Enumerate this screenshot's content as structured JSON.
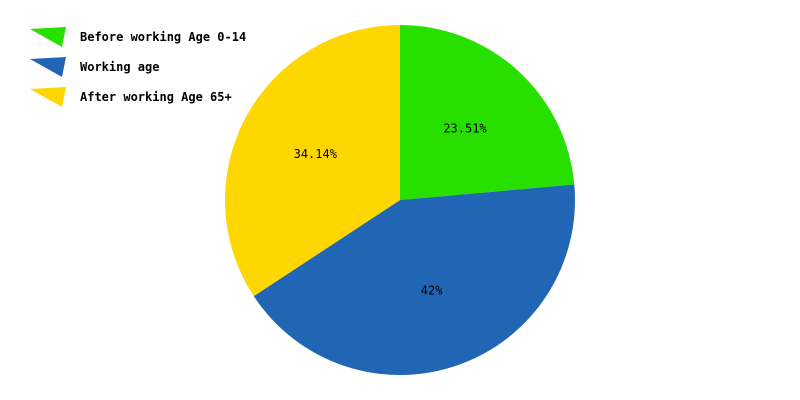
{
  "chart_data": {
    "type": "pie",
    "series": [
      {
        "name": "Before working Age 0-14",
        "value": 23.51,
        "label": "23.51%",
        "color": "#27e000"
      },
      {
        "name": "Working age",
        "value": 42,
        "label": "42%",
        "color": "#2166b4"
      },
      {
        "name": "After working Age 65+",
        "value": 34.14,
        "label": "34.14%",
        "color": "#ffd700"
      }
    ],
    "legend_position": "top-left",
    "start_angle": "top",
    "direction": "clockwise"
  }
}
